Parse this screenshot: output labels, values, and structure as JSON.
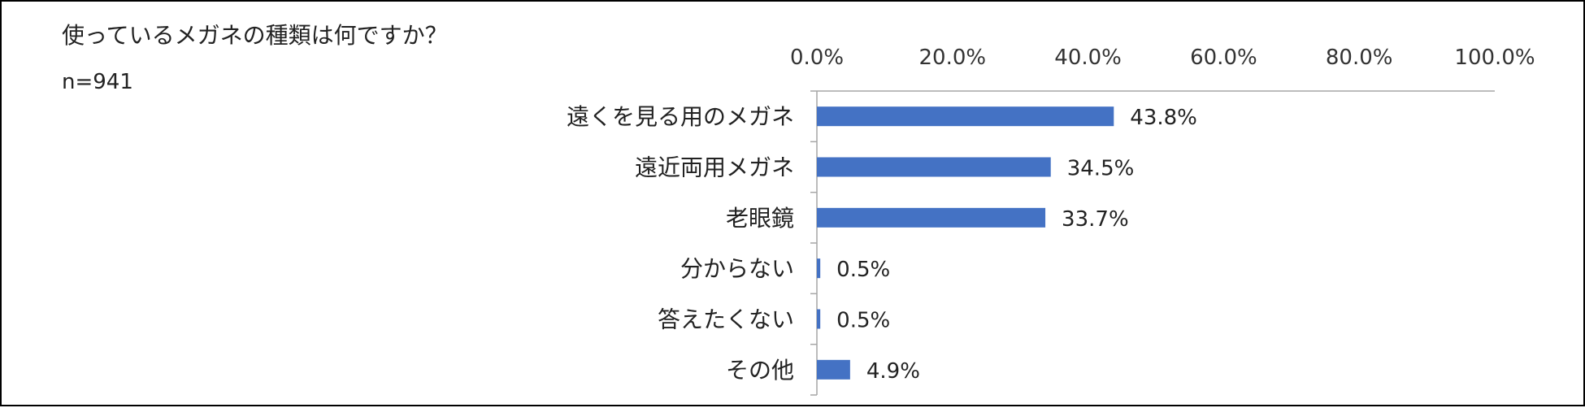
{
  "chart_data": {
    "type": "bar",
    "orientation": "horizontal",
    "title": "使っているメガネの種類は何ですか？",
    "subtitle": "n=941",
    "categories": [
      "遠くを見る用のメガネ",
      "遠近両用メガネ",
      "老眼鏡",
      "分からない",
      "答えたくない",
      "その他"
    ],
    "values": [
      43.8,
      34.5,
      33.7,
      0.5,
      0.5,
      4.9
    ],
    "data_labels": [
      "43.8%",
      "34.5%",
      "33.7%",
      "0.5%",
      "0.5%",
      "4.9%"
    ],
    "xlim": [
      0,
      100
    ],
    "x_ticks": [
      0,
      20,
      40,
      60,
      80,
      100
    ],
    "x_tick_labels": [
      "0.0%",
      "20.0%",
      "40.0%",
      "60.0%",
      "80.0%",
      "100.0%"
    ],
    "axis_position": "top",
    "grid": false,
    "legend": false,
    "bar_color": "#4472C4",
    "axis_color": "#A6A6A6"
  }
}
